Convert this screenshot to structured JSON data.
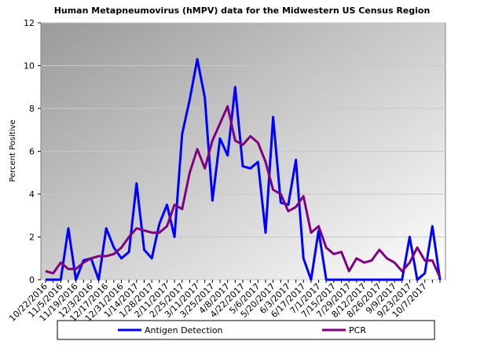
{
  "chart_data": {
    "type": "line",
    "title": "Human Metapneumovirus (hMPV) data for the Midwestern US Census Region",
    "y_label": "Percent Positive",
    "categories": [
      "10/22/2016",
      null,
      "11/5/2016",
      null,
      "11/19/2016",
      null,
      "12/3/2016",
      null,
      "12/17/2016",
      null,
      "12/31/2016",
      null,
      "1/14/2017",
      null,
      "1/28/2017",
      null,
      "2/11/2017",
      null,
      "2/25/2017",
      null,
      "3/11/2017",
      null,
      "3/25/2017",
      null,
      "4/8/2017",
      null,
      "4/22/2017",
      null,
      "5/6/2017",
      null,
      "5/20/2017",
      null,
      "6/3/2017",
      null,
      "6/17/2017",
      null,
      "7/1/2017",
      null,
      "7/15/2017",
      null,
      "7/29/2017",
      null,
      "8/12/2017",
      null,
      "8/26/2017",
      null,
      "9/9/2017",
      null,
      "9/23/2017",
      null,
      "10/7/2017",
      null,
      null
    ],
    "series": [
      {
        "name": "Antigen Detection",
        "color": "#0000ff",
        "values": [
          0,
          0,
          0,
          2.4,
          0,
          0.9,
          1.0,
          0,
          2.4,
          1.5,
          1.0,
          1.3,
          4.5,
          1.4,
          1.0,
          2.6,
          3.5,
          2.0,
          6.8,
          8.4,
          10.3,
          8.5,
          3.7,
          6.6,
          5.8,
          9.0,
          5.3,
          5.2,
          5.5,
          2.2,
          7.6,
          3.6,
          3.5,
          5.6,
          1.0,
          0,
          2.3,
          0,
          0,
          0,
          0,
          0,
          0,
          0,
          0,
          0,
          0,
          0,
          2.0,
          0,
          0.3,
          2.5,
          0
        ]
      },
      {
        "name": "PCR",
        "color": "#800080",
        "values": [
          0.4,
          0.3,
          0.8,
          0.5,
          0.5,
          0.8,
          1.0,
          1.1,
          1.1,
          1.2,
          1.5,
          2.0,
          2.4,
          2.3,
          2.2,
          2.2,
          2.5,
          3.5,
          3.3,
          5.0,
          6.1,
          5.2,
          6.5,
          7.3,
          8.1,
          6.5,
          6.3,
          6.7,
          6.4,
          5.5,
          4.2,
          4.0,
          3.2,
          3.4,
          3.9,
          2.2,
          2.5,
          1.5,
          1.2,
          1.3,
          0.4,
          1.0,
          0.8,
          0.9,
          1.4,
          1.0,
          0.8,
          0.4,
          0.8,
          1.5,
          0.9,
          0.9,
          0.1
        ]
      }
    ],
    "ylim": [
      0,
      12
    ],
    "yticks": [
      0,
      2,
      4,
      6,
      8,
      10,
      12
    ],
    "grid": true
  }
}
